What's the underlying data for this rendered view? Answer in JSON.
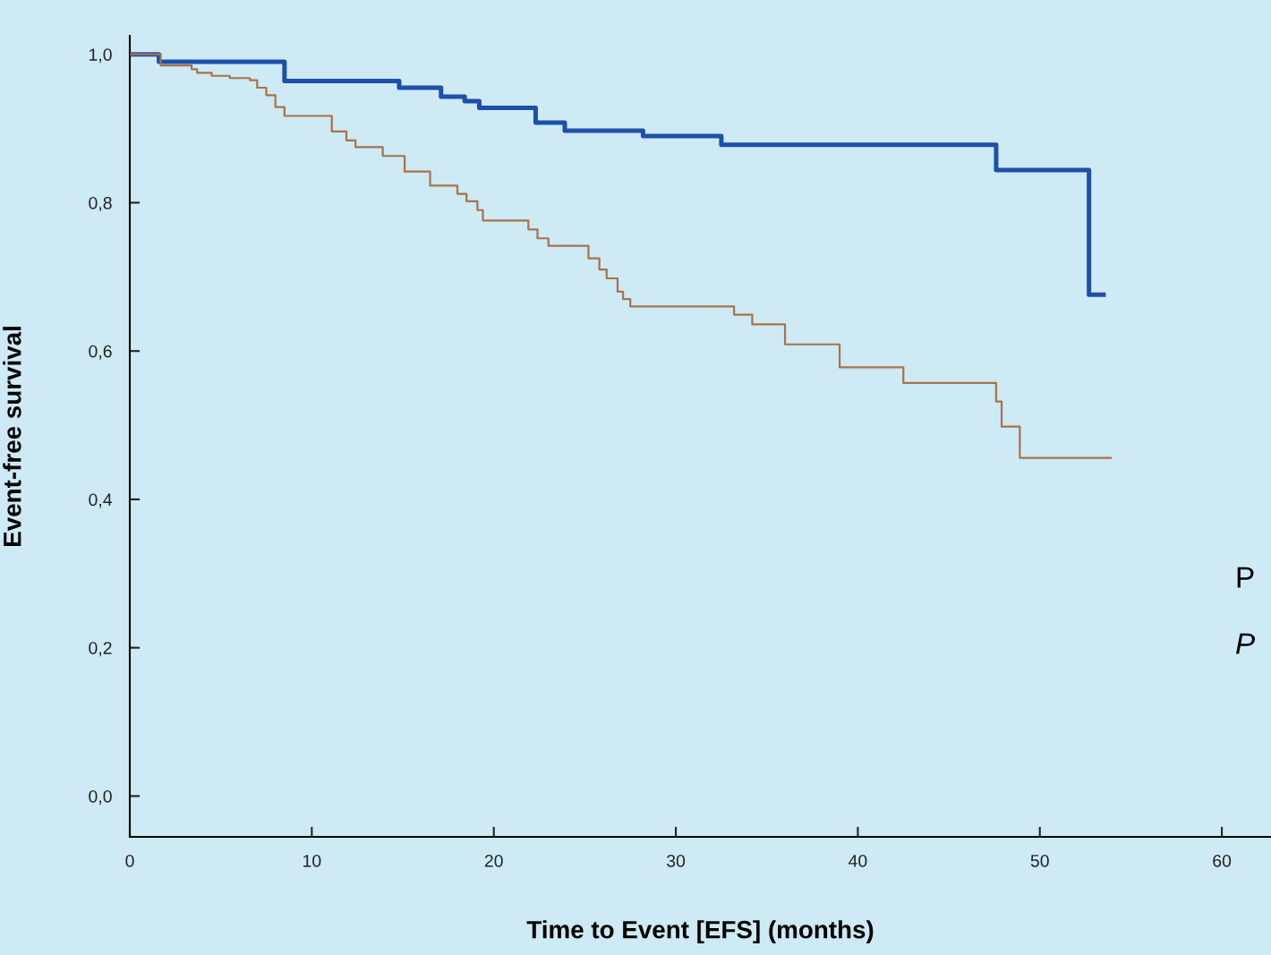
{
  "chart_data": {
    "type": "step",
    "xlabel": "Time to Event [EFS] (months)",
    "ylabel": "Event-free survival",
    "xlim": [
      0,
      62.7
    ],
    "xticks": [
      0,
      10,
      20,
      30,
      40,
      50,
      60
    ],
    "ylim": [
      -0.055,
      1.025
    ],
    "yticks": [
      {
        "value": 0,
        "label": "0,0"
      },
      {
        "value": 0.2,
        "label": "0,2"
      },
      {
        "value": 0.4,
        "label": "0,4"
      },
      {
        "value": 0.6,
        "label": "0,6"
      },
      {
        "value": 0.8,
        "label": "0,8"
      },
      {
        "value": 1.0,
        "label": "1,0"
      }
    ],
    "grid": false,
    "legend": false,
    "series": [
      {
        "color": "#1f4fa8",
        "x": [
          0,
          1.6,
          8.5,
          14.8,
          17.1,
          18.4,
          19.2,
          22.3,
          23.9,
          28.2,
          32.5,
          47.6,
          52.7,
          53.5
        ],
        "values": [
          1.0,
          0.99,
          0.964,
          0.955,
          0.943,
          0.937,
          0.928,
          0.908,
          0.897,
          0.89,
          0.878,
          0.844,
          0.676,
          0.676
        ]
      },
      {
        "color": "#a8734a",
        "x": [
          0,
          1.7,
          3.4,
          3.7,
          4.5,
          5.5,
          6.6,
          7.0,
          7.5,
          8.0,
          8.5,
          11.1,
          11.9,
          12.4,
          13.9,
          15.1,
          16.5,
          18.0,
          18.5,
          19.1,
          19.4,
          21.9,
          22.4,
          23.0,
          25.2,
          25.8,
          26.2,
          26.8,
          27.1,
          27.5,
          33.2,
          34.2,
          36.0,
          39.0,
          42.5,
          47.6,
          47.9,
          48.9,
          53.9
        ],
        "values": [
          1.0,
          0.985,
          0.98,
          0.975,
          0.971,
          0.968,
          0.965,
          0.955,
          0.945,
          0.929,
          0.917,
          0.896,
          0.884,
          0.875,
          0.863,
          0.842,
          0.823,
          0.812,
          0.802,
          0.79,
          0.776,
          0.764,
          0.752,
          0.742,
          0.725,
          0.71,
          0.698,
          0.68,
          0.67,
          0.66,
          0.649,
          0.636,
          0.609,
          0.578,
          0.557,
          0.532,
          0.498,
          0.456,
          0.456
        ]
      }
    ],
    "annotations": [
      "P",
      "P"
    ]
  }
}
